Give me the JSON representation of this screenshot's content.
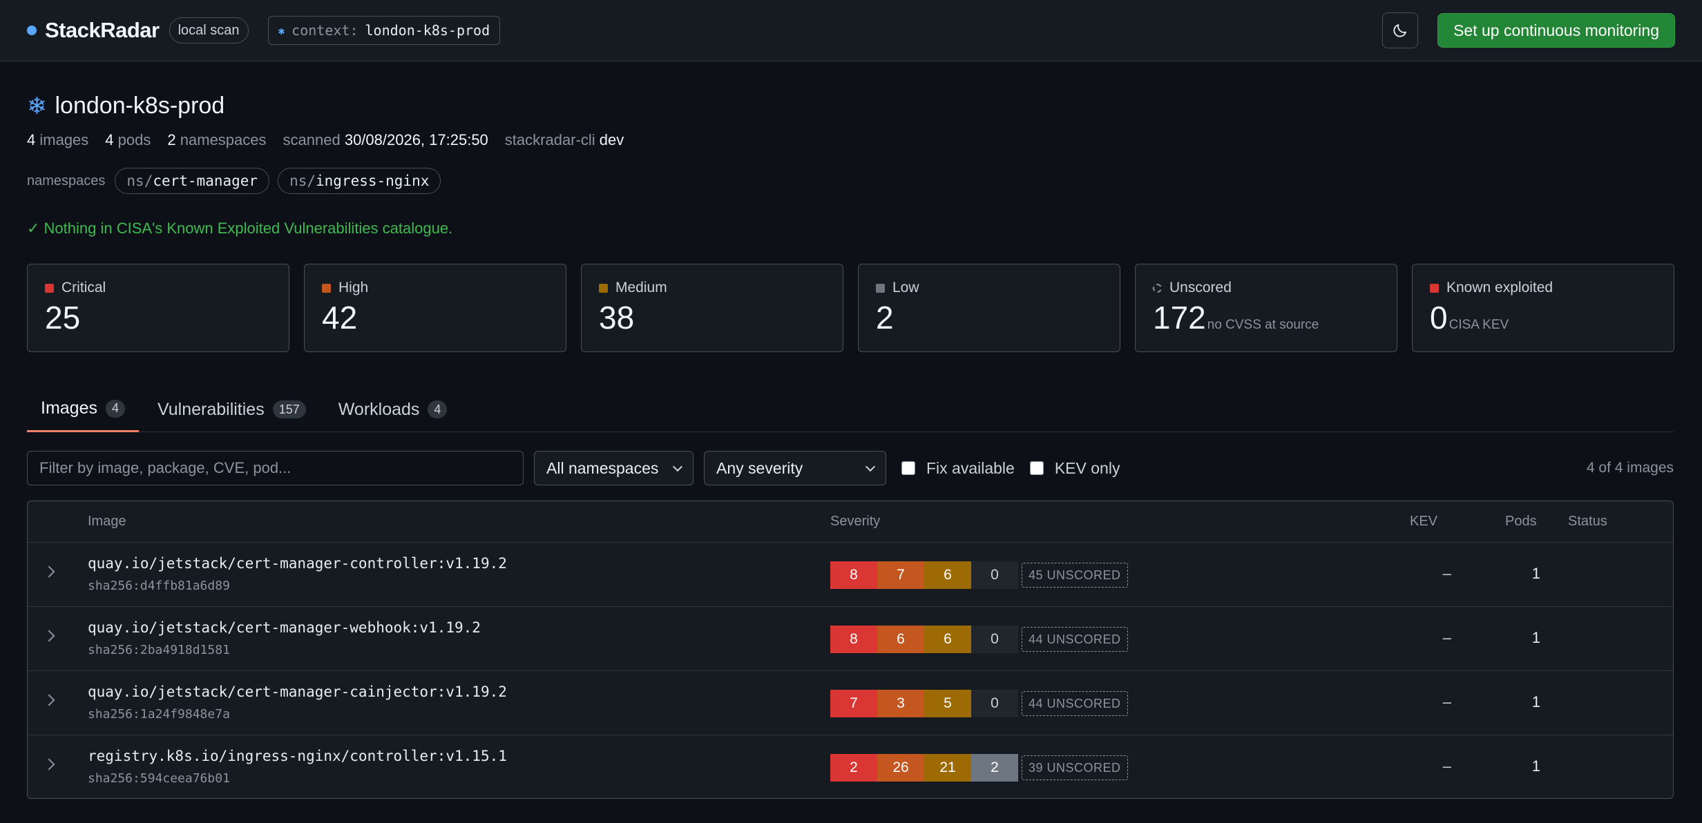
{
  "header": {
    "brand": "StackRadar",
    "badge": "local scan",
    "context_key": "context:",
    "context_value": "london-k8s-prod",
    "cta": "Set up continuous monitoring"
  },
  "cluster": {
    "title": "london-k8s-prod",
    "meta": {
      "images_count": "4",
      "images_label": "images",
      "pods_count": "4",
      "pods_label": "pods",
      "namespaces_count": "2",
      "namespaces_label": "namespaces",
      "scanned_label": "scanned",
      "scanned_value": "30/08/2026, 17:25:50",
      "cli_label": "stackradar-cli",
      "cli_value": "dev"
    },
    "namespaces_label": "namespaces",
    "namespaces": [
      {
        "prefix": "ns/",
        "name": "cert-manager"
      },
      {
        "prefix": "ns/",
        "name": "ingress-nginx"
      }
    ],
    "kev_message": "✓ Nothing in CISA's Known Exploited Vulnerabilities catalogue."
  },
  "stats": [
    {
      "label": "Critical",
      "value": "25",
      "sub": "",
      "color": "#da3633"
    },
    {
      "label": "High",
      "value": "42",
      "sub": "",
      "color": "#c4561f"
    },
    {
      "label": "Medium",
      "value": "38",
      "sub": "",
      "color": "#9e6a03"
    },
    {
      "label": "Low",
      "value": "2",
      "sub": "",
      "color": "#6e7681"
    },
    {
      "label": "Unscored",
      "value": "172",
      "sub": "no CVSS at source",
      "color": "dashed"
    },
    {
      "label": "Known exploited",
      "value": "0",
      "sub": "CISA KEV",
      "color": "#da3633"
    }
  ],
  "tabs": [
    {
      "label": "Images",
      "count": "4"
    },
    {
      "label": "Vulnerabilities",
      "count": "157"
    },
    {
      "label": "Workloads",
      "count": "4"
    }
  ],
  "filters": {
    "search_placeholder": "Filter by image, package, CVE, pod...",
    "namespace_select": "All namespaces",
    "severity_select": "Any severity",
    "fix_available": "Fix available",
    "kev_only": "KEV only",
    "count_text": "4 of 4 images"
  },
  "table": {
    "headers": {
      "image": "Image",
      "severity": "Severity",
      "kev": "KEV",
      "pods": "Pods",
      "status": "Status"
    },
    "rows": [
      {
        "image": "quay.io/jetstack/cert-manager-controller:v1.19.2",
        "sha": "sha256:d4ffb81a6d89",
        "critical": "8",
        "high": "7",
        "medium": "6",
        "low": "0",
        "unscored": "45 UNSCORED",
        "kev": "–",
        "pods": "1",
        "status": ""
      },
      {
        "image": "quay.io/jetstack/cert-manager-webhook:v1.19.2",
        "sha": "sha256:2ba4918d1581",
        "critical": "8",
        "high": "6",
        "medium": "6",
        "low": "0",
        "unscored": "44 UNSCORED",
        "kev": "–",
        "pods": "1",
        "status": ""
      },
      {
        "image": "quay.io/jetstack/cert-manager-cainjector:v1.19.2",
        "sha": "sha256:1a24f9848e7a",
        "critical": "7",
        "high": "3",
        "medium": "5",
        "low": "0",
        "unscored": "44 UNSCORED",
        "kev": "–",
        "pods": "1",
        "status": ""
      },
      {
        "image": "registry.k8s.io/ingress-nginx/controller:v1.15.1",
        "sha": "sha256:594ceea76b01",
        "critical": "2",
        "high": "26",
        "medium": "21",
        "low": "2",
        "unscored": "39 UNSCORED",
        "kev": "–",
        "pods": "1",
        "status": ""
      }
    ]
  }
}
